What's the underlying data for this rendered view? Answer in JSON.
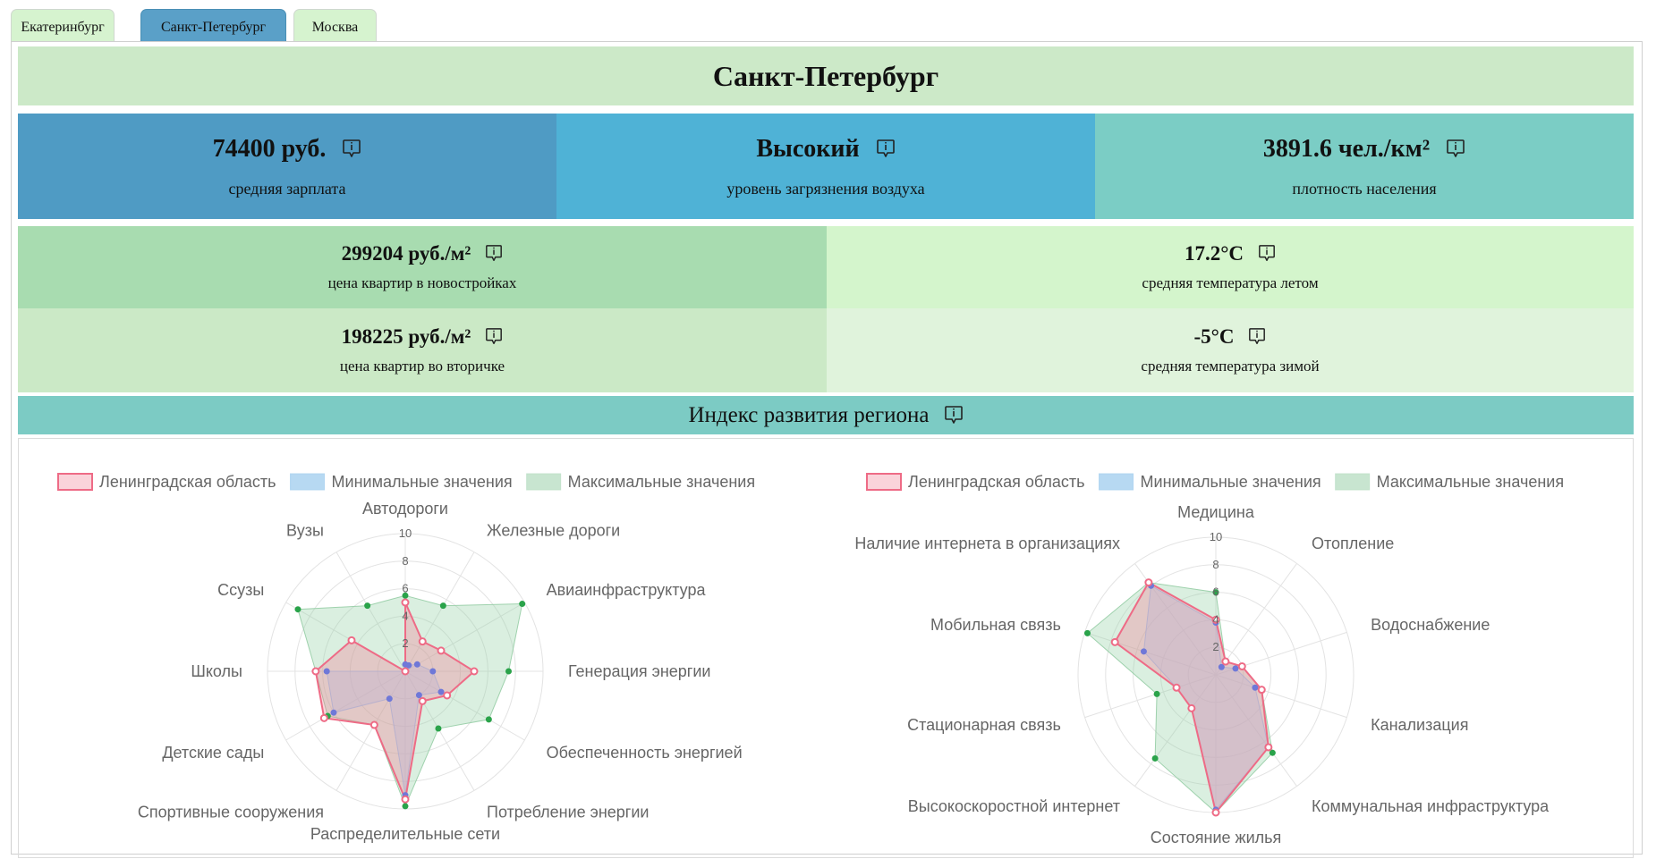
{
  "tabs": [
    {
      "label": "Екатеринбург",
      "active": false
    },
    {
      "label": "Санкт-Петербург",
      "active": true
    },
    {
      "label": "Москва",
      "active": false
    }
  ],
  "city_title": "Санкт-Петербург",
  "kpis": [
    {
      "value": "74400 руб.",
      "label": "средняя зарплата",
      "color": "#4f9bc4"
    },
    {
      "value": "Высокий",
      "label": "уровень загрязнения воздуха",
      "color": "#4fb2d6"
    },
    {
      "value": "3891.6 чел./км²",
      "label": "плотность населения",
      "color": "#7bcdc5"
    }
  ],
  "stats": [
    {
      "value": "299204 руб./м²",
      "label": "цена квартир в новостройках",
      "color": "#a8dcb0"
    },
    {
      "value": "17.2°C",
      "label": "средняя температура летом",
      "color": "#d4f5cc"
    },
    {
      "value": "198225 руб./м²",
      "label": "цена квартир во вторичке",
      "color": "#cbe9c6"
    },
    {
      "value": "-5°C",
      "label": "средняя температура зимой",
      "color": "#e0f3dc"
    }
  ],
  "index_title": "Индекс развития региона",
  "icons": {
    "info": "info-speech-bubble-icon"
  },
  "chart_data": [
    {
      "type": "radar",
      "legend": [
        "Ленинградская область",
        "Минимальные значения",
        "Максимальные значения"
      ],
      "axes": [
        "Автодороги",
        "Железные дороги",
        "Авиаинфраструктура",
        "Генерация энергии",
        "Обеспеченность энергией",
        "Потребление энергии",
        "Распределительные сети",
        "Спортивные сооружения",
        "Детские сады",
        "Школы",
        "Ссузы",
        "Вузы"
      ],
      "ticks": [
        2,
        4,
        6,
        8,
        10
      ],
      "range": [
        0,
        10
      ],
      "series": [
        {
          "name": "Ленинградская область",
          "values": [
            5,
            2.5,
            3,
            5,
            3.5,
            2.5,
            9.3,
            4.5,
            6.8,
            6.5,
            4.5,
            0
          ]
        },
        {
          "name": "Минимальные значения",
          "values": [
            0.5,
            0.5,
            1,
            2,
            3,
            2,
            9,
            2.3,
            6,
            5.7,
            0,
            0
          ]
        },
        {
          "name": "Максимальные значения",
          "values": [
            5.5,
            5.5,
            9.8,
            7.5,
            7,
            4.8,
            9.8,
            4.5,
            6.5,
            6.5,
            9,
            5.5
          ]
        }
      ]
    },
    {
      "type": "radar",
      "legend": [
        "Ленинградская область",
        "Минимальные значения",
        "Максимальные значения"
      ],
      "axes": [
        "Медицина",
        "Отопление",
        "Водоснабжение",
        "Канализация",
        "Коммунальная инфраструктура",
        "Состояние жилья",
        "Высокоскоростной интернет",
        "Стационарная связь",
        "Мобильная связь",
        "Наличие интернета в организациях"
      ],
      "ticks": [
        2,
        4,
        6,
        8,
        10
      ],
      "range": [
        0,
        10
      ],
      "series": [
        {
          "name": "Ленинградская область",
          "values": [
            4,
            1.2,
            2,
            3.5,
            6.5,
            10,
            3,
            3,
            7.7,
            8.3
          ]
        },
        {
          "name": "Минимальные значения",
          "values": [
            3.8,
            0.7,
            1.5,
            3,
            6.5,
            9.8,
            3,
            3,
            5.5,
            8
          ]
        },
        {
          "name": "Максимальные значения",
          "values": [
            6,
            1.2,
            2,
            3.5,
            7,
            10,
            7.5,
            4.5,
            9.8,
            8.3
          ]
        }
      ]
    }
  ]
}
